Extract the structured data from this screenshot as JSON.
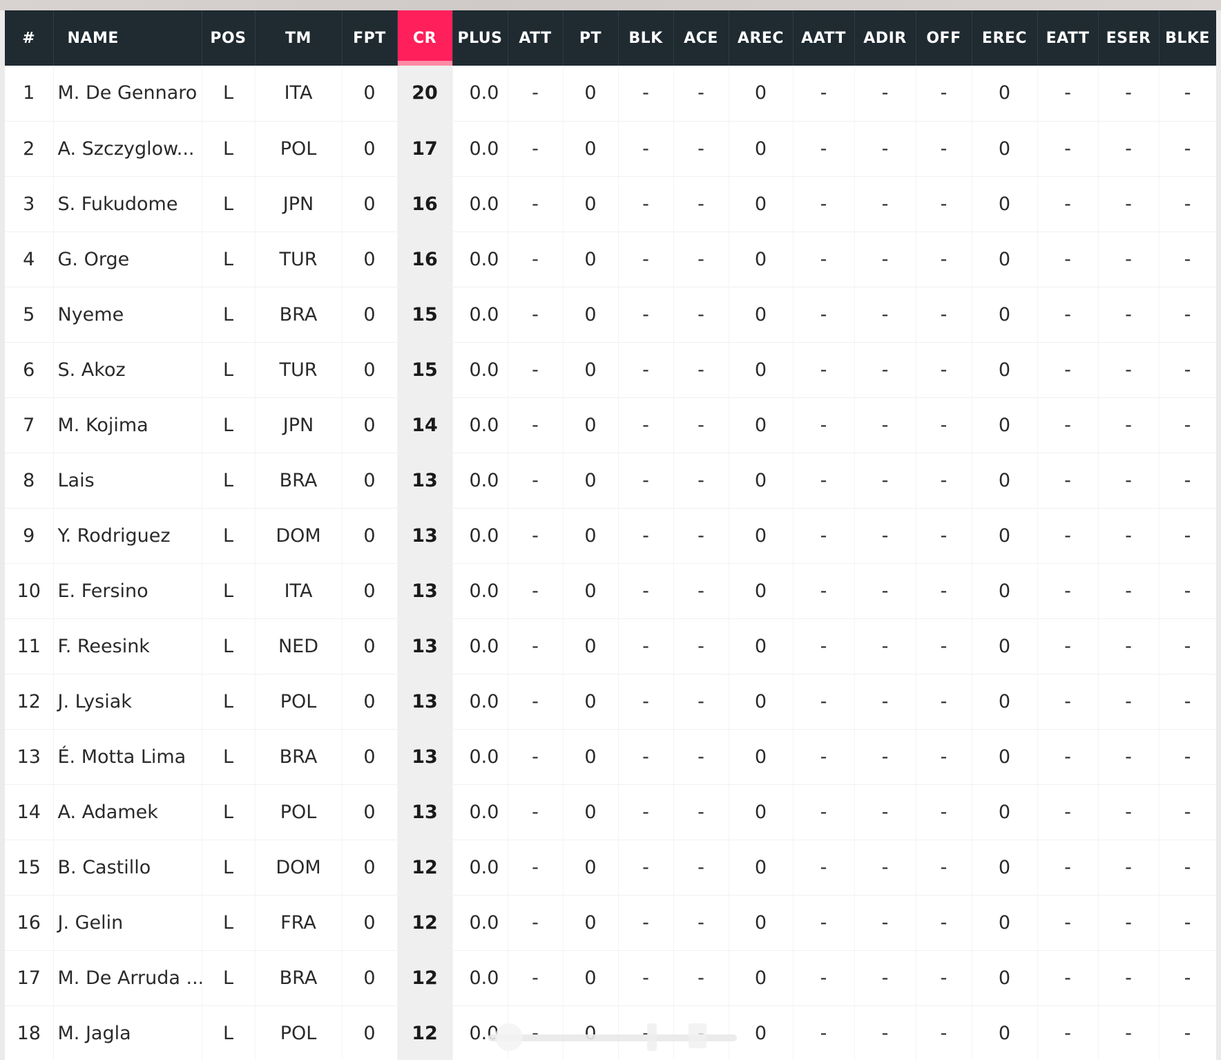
{
  "columns": [
    "#",
    "NAME",
    "POS",
    "TM",
    "FPT",
    "CR",
    "PLUS",
    "ATT",
    "PT",
    "BLK",
    "ACE",
    "AREC",
    "AATT",
    "ADIR",
    "OFF",
    "EREC",
    "EATT",
    "ESER",
    "BLKE"
  ],
  "highlight_color": "#ff1f5a",
  "rows": [
    [
      "1",
      "M. De Gennaro",
      "L",
      "ITA",
      "0",
      "20",
      "0.0",
      "-",
      "0",
      "-",
      "-",
      "0",
      "-",
      "-",
      "-",
      "0",
      "-",
      "-",
      "-"
    ],
    [
      "2",
      "A. Szczyglow...",
      "L",
      "POL",
      "0",
      "17",
      "0.0",
      "-",
      "0",
      "-",
      "-",
      "0",
      "-",
      "-",
      "-",
      "0",
      "-",
      "-",
      "-"
    ],
    [
      "3",
      "S. Fukudome",
      "L",
      "JPN",
      "0",
      "16",
      "0.0",
      "-",
      "0",
      "-",
      "-",
      "0",
      "-",
      "-",
      "-",
      "0",
      "-",
      "-",
      "-"
    ],
    [
      "4",
      "G. Orge",
      "L",
      "TUR",
      "0",
      "16",
      "0.0",
      "-",
      "0",
      "-",
      "-",
      "0",
      "-",
      "-",
      "-",
      "0",
      "-",
      "-",
      "-"
    ],
    [
      "5",
      "Nyeme",
      "L",
      "BRA",
      "0",
      "15",
      "0.0",
      "-",
      "0",
      "-",
      "-",
      "0",
      "-",
      "-",
      "-",
      "0",
      "-",
      "-",
      "-"
    ],
    [
      "6",
      "S. Akoz",
      "L",
      "TUR",
      "0",
      "15",
      "0.0",
      "-",
      "0",
      "-",
      "-",
      "0",
      "-",
      "-",
      "-",
      "0",
      "-",
      "-",
      "-"
    ],
    [
      "7",
      "M. Kojima",
      "L",
      "JPN",
      "0",
      "14",
      "0.0",
      "-",
      "0",
      "-",
      "-",
      "0",
      "-",
      "-",
      "-",
      "0",
      "-",
      "-",
      "-"
    ],
    [
      "8",
      "Lais",
      "L",
      "BRA",
      "0",
      "13",
      "0.0",
      "-",
      "0",
      "-",
      "-",
      "0",
      "-",
      "-",
      "-",
      "0",
      "-",
      "-",
      "-"
    ],
    [
      "9",
      "Y. Rodriguez",
      "L",
      "DOM",
      "0",
      "13",
      "0.0",
      "-",
      "0",
      "-",
      "-",
      "0",
      "-",
      "-",
      "-",
      "0",
      "-",
      "-",
      "-"
    ],
    [
      "10",
      "E. Fersino",
      "L",
      "ITA",
      "0",
      "13",
      "0.0",
      "-",
      "0",
      "-",
      "-",
      "0",
      "-",
      "-",
      "-",
      "0",
      "-",
      "-",
      "-"
    ],
    [
      "11",
      "F. Reesink",
      "L",
      "NED",
      "0",
      "13",
      "0.0",
      "-",
      "0",
      "-",
      "-",
      "0",
      "-",
      "-",
      "-",
      "0",
      "-",
      "-",
      "-"
    ],
    [
      "12",
      "J. Lysiak",
      "L",
      "POL",
      "0",
      "13",
      "0.0",
      "-",
      "0",
      "-",
      "-",
      "0",
      "-",
      "-",
      "-",
      "0",
      "-",
      "-",
      "-"
    ],
    [
      "13",
      "É. Motta Lima",
      "L",
      "BRA",
      "0",
      "13",
      "0.0",
      "-",
      "0",
      "-",
      "-",
      "0",
      "-",
      "-",
      "-",
      "0",
      "-",
      "-",
      "-"
    ],
    [
      "14",
      "A. Adamek",
      "L",
      "POL",
      "0",
      "13",
      "0.0",
      "-",
      "0",
      "-",
      "-",
      "0",
      "-",
      "-",
      "-",
      "0",
      "-",
      "-",
      "-"
    ],
    [
      "15",
      "B. Castillo",
      "L",
      "DOM",
      "0",
      "12",
      "0.0",
      "-",
      "0",
      "-",
      "-",
      "0",
      "-",
      "-",
      "-",
      "0",
      "-",
      "-",
      "-"
    ],
    [
      "16",
      "J. Gelin",
      "L",
      "FRA",
      "0",
      "12",
      "0.0",
      "-",
      "0",
      "-",
      "-",
      "0",
      "-",
      "-",
      "-",
      "0",
      "-",
      "-",
      "-"
    ],
    [
      "17",
      "M. De Arruda ...",
      "L",
      "BRA",
      "0",
      "12",
      "0.0",
      "-",
      "0",
      "-",
      "-",
      "0",
      "-",
      "-",
      "-",
      "0",
      "-",
      "-",
      "-"
    ],
    [
      "18",
      "M. Jagla",
      "L",
      "POL",
      "0",
      "12",
      "0.0",
      "-",
      "0",
      "-",
      "-",
      "0",
      "-",
      "-",
      "-",
      "0",
      "-",
      "-",
      "-"
    ]
  ]
}
